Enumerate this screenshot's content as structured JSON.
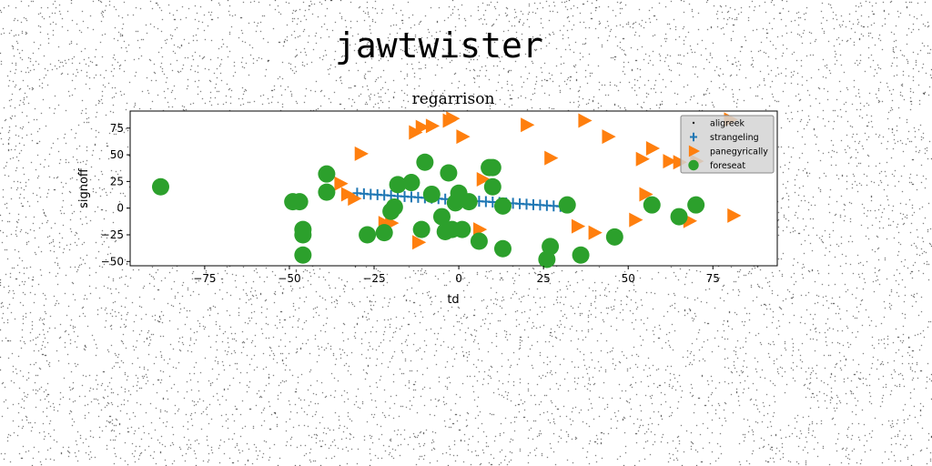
{
  "figure_title": "jawtwister",
  "chart_data": {
    "type": "scatter",
    "title": "regarrison",
    "xlabel": "td",
    "ylabel": "signoff",
    "xlim": [
      -97,
      94
    ],
    "ylim": [
      -54,
      91
    ],
    "xticks": [
      -75,
      -50,
      -25,
      0,
      25,
      50,
      75
    ],
    "yticks": [
      -50,
      -25,
      0,
      25,
      50,
      75
    ],
    "grid": false,
    "legend_position": "top-right",
    "series": [
      {
        "name": "aligreek",
        "marker": "point",
        "color": "#1f1f1f",
        "x": [],
        "y": []
      },
      {
        "name": "strangeling",
        "marker": "plus",
        "color": "#1f77b4",
        "x": [
          -30,
          -28,
          -26,
          -24,
          -22,
          -20,
          -18,
          -16,
          -14,
          -12,
          -10,
          -8,
          -6,
          -4,
          -2,
          0,
          2,
          4,
          6,
          8,
          10,
          12,
          14,
          16,
          18,
          20,
          22,
          24,
          26,
          28,
          30,
          32
        ],
        "y": [
          14,
          13.5,
          13,
          12.6,
          12.2,
          11.8,
          11.3,
          10.9,
          10.5,
          10.1,
          9.7,
          9.3,
          8.9,
          8.5,
          8.1,
          7.7,
          7.3,
          6.9,
          6.5,
          6.1,
          5.7,
          5.3,
          4.9,
          4.5,
          4.1,
          3.7,
          3.3,
          2.9,
          2.5,
          2.1,
          1.7,
          1.3
        ]
      },
      {
        "name": "panegyrically",
        "marker": "triangle-right",
        "color": "#ff7f0e",
        "x": [
          -29,
          -35,
          -33,
          -31,
          -22,
          -13,
          -11,
          -8,
          -3,
          1,
          -12,
          -2,
          7,
          6,
          20,
          27,
          37,
          44,
          35,
          40,
          52,
          54,
          57,
          55,
          62,
          68,
          70,
          81,
          80,
          65,
          -20
        ],
        "y": [
          51,
          23,
          13,
          9,
          -14,
          71,
          76,
          77,
          82,
          67,
          -32,
          84,
          27,
          -20,
          78,
          47,
          82,
          67,
          -17,
          -23,
          -11,
          46,
          56,
          13,
          44,
          -12,
          44,
          -7,
          83,
          43,
          -14
        ]
      },
      {
        "name": "foreseat",
        "marker": "circle",
        "color": "#2ca02c",
        "x": [
          -88,
          -49,
          -47,
          -46,
          -46,
          -46,
          -39,
          -39,
          -27,
          -22,
          -20,
          -19,
          -18,
          -14,
          -11,
          -10,
          -8,
          -5,
          -4,
          -3,
          -2,
          -1,
          0,
          1,
          3,
          6,
          9,
          10,
          10,
          13,
          13,
          26,
          27,
          32,
          36,
          46,
          57,
          65,
          70
        ],
        "y": [
          20,
          6,
          6,
          -20,
          -25,
          -44,
          32,
          15,
          -25,
          -23,
          -3,
          1,
          22,
          24,
          -20,
          43,
          13,
          -8,
          -22,
          33,
          -20,
          5,
          14,
          -20,
          6,
          -31,
          38,
          38,
          20,
          2,
          -38,
          -48,
          -36,
          3,
          -44,
          -27,
          3,
          -8,
          3
        ]
      }
    ]
  }
}
